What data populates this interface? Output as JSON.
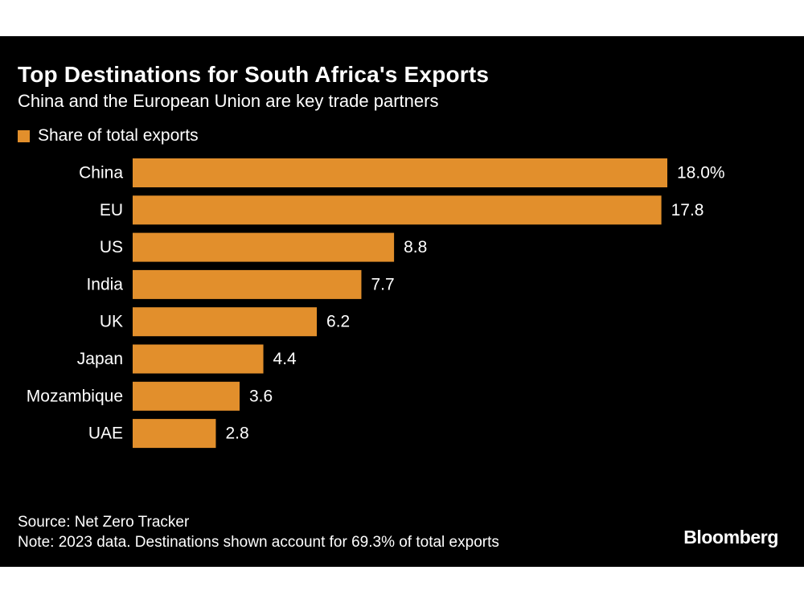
{
  "title": "Top Destinations for South Africa's Exports",
  "subtitle": "China and the European Union are key trade partners",
  "legend": {
    "label": "Share of total exports"
  },
  "colors": {
    "background": "#000000",
    "bar": "#E28F2C",
    "text": "#ffffff"
  },
  "footer": {
    "source": "Source: Net Zero Tracker",
    "note": "Note: 2023 data. Destinations shown account for 69.3% of total exports"
  },
  "logo": "Bloomberg",
  "chart_data": {
    "type": "bar",
    "orientation": "horizontal",
    "title": "Top Destinations for South Africa's Exports",
    "subtitle": "China and the European Union are key trade partners",
    "series": [
      {
        "name": "Share of total exports",
        "values": [
          18.0,
          17.8,
          8.8,
          7.7,
          6.2,
          4.4,
          3.6,
          2.8
        ]
      }
    ],
    "categories": [
      "China",
      "EU",
      "US",
      "India",
      "UK",
      "Japan",
      "Mozambique",
      "UAE"
    ],
    "values": [
      18.0,
      17.8,
      8.8,
      7.7,
      6.2,
      4.4,
      3.6,
      2.8
    ],
    "value_labels": [
      "18.0%",
      "17.8",
      "8.8",
      "7.7",
      "6.2",
      "4.4",
      "3.6",
      "2.8"
    ],
    "xlabel": "",
    "ylabel": "",
    "xlim": [
      0,
      18.0
    ],
    "grid": false,
    "legend_position": "top-left"
  }
}
